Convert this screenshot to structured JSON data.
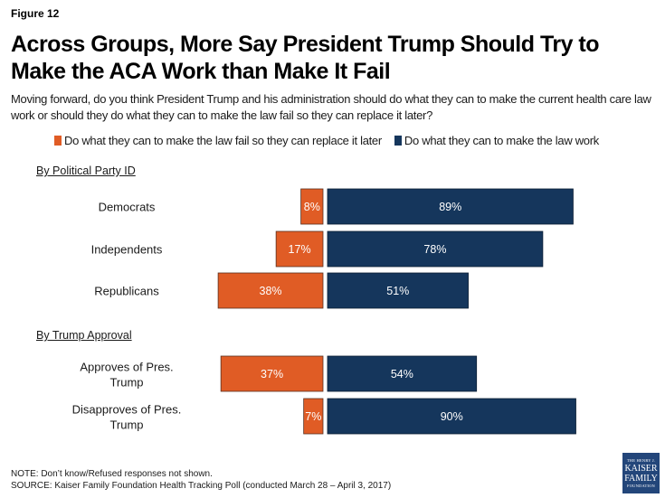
{
  "figure_label": "Figure 12",
  "title": "Across Groups, More Say President Trump Should Try to Make the ACA Work than Make It Fail",
  "subtitle": "Moving forward, do you think President Trump and his administration should do what they can to make the current health care law work or should they do what they can to make the law fail so they can replace it later?",
  "colors": {
    "fail": "#E05C25",
    "work": "#15365C"
  },
  "legend": [
    {
      "label": "Do what they can to make the law fail so they can replace it later",
      "color": "#E05C25"
    },
    {
      "label": "Do what they can to make the law work",
      "color": "#15365C"
    }
  ],
  "chart_data": {
    "type": "bar",
    "orientation": "horizontal-diverging",
    "title": "Across Groups, More Say President Trump Should Try to Make the ACA Work than Make It Fail",
    "xlabel": "",
    "ylabel": "",
    "xlim": [
      0,
      100
    ],
    "grid": false,
    "legend_position": "top",
    "sections": [
      {
        "label": "By Political Party ID",
        "categories": [
          "Democrats",
          "Independents",
          "Republicans"
        ]
      },
      {
        "label": "By Trump Approval",
        "categories": [
          "Approves of Pres. Trump",
          "Disapproves of Pres. Trump"
        ]
      }
    ],
    "categories": [
      "Democrats",
      "Independents",
      "Republicans",
      "Approves of Pres. Trump",
      "Disapproves of Pres. Trump"
    ],
    "series": [
      {
        "name": "Do what they can to make the law fail so they can replace it later",
        "values": [
          8,
          17,
          38,
          37,
          7
        ]
      },
      {
        "name": "Do what they can to make the law work",
        "values": [
          89,
          78,
          51,
          54,
          90
        ]
      }
    ],
    "value_suffix": "%"
  },
  "notes": {
    "note": "NOTE: Don’t know/Refused responses not shown.",
    "source": "SOURCE: Kaiser Family Foundation Health Tracking Poll (conducted March 28 – April 3, 2017)"
  },
  "logo": {
    "line1": "THE HENRY J.",
    "line2": "KAISER",
    "line3": "FAMILY",
    "line4": "FOUNDATION"
  }
}
